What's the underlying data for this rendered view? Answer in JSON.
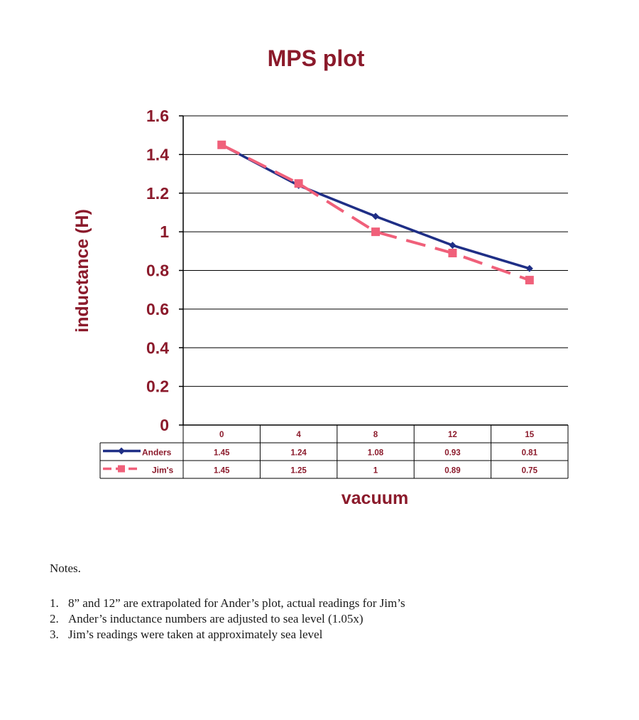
{
  "chart_data": {
    "type": "line",
    "title": "MPS plot",
    "xlabel": "vacuum",
    "ylabel": "inductance (H)",
    "categories": [
      "0",
      "4",
      "8",
      "12",
      "15"
    ],
    "ylim": [
      0,
      1.6
    ],
    "yticks": [
      "0",
      "0.2",
      "0.4",
      "0.6",
      "0.8",
      "1",
      "1.2",
      "1.4",
      "1.6"
    ],
    "grid": true,
    "legend": "data-table",
    "series": [
      {
        "name": "Anders",
        "values": [
          1.45,
          1.24,
          1.08,
          0.93,
          0.81
        ],
        "labels": [
          "1.45",
          "1.24",
          "1.08",
          "0.93",
          "0.81"
        ],
        "color": "#1f2f86",
        "marker": "diamond",
        "dash": "solid"
      },
      {
        "name": "Jim's",
        "values": [
          1.45,
          1.25,
          1,
          0.89,
          0.75
        ],
        "labels": [
          "1.45",
          "1.25",
          "1",
          "0.89",
          "0.75"
        ],
        "color": "#f0607a",
        "marker": "square",
        "dash": "dashed"
      }
    ]
  },
  "notes": {
    "title": "Notes.",
    "items": [
      {
        "num": "1.",
        "text": "8” and 12” are extrapolated for Ander’s plot, actual readings for Jim’s"
      },
      {
        "num": "2.",
        "text": "Ander’s inductance numbers are adjusted to sea level (1.05x)"
      },
      {
        "num": "3.",
        "text": "Jim’s readings were taken at approximately sea level"
      }
    ]
  }
}
